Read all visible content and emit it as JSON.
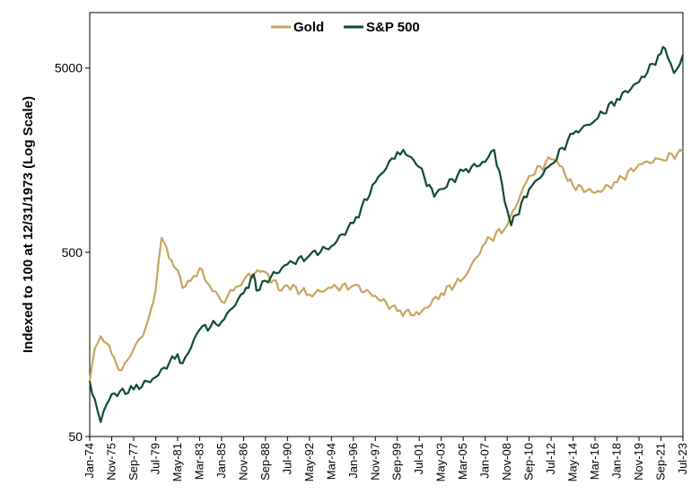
{
  "chart_data": {
    "type": "line",
    "title": "",
    "xlabel": "",
    "ylabel": "Indexed to 100 at 12/31/1973 (Log Scale)",
    "y_scale": "log",
    "ylim": [
      50,
      10000
    ],
    "y_ticks": [
      50,
      500,
      5000
    ],
    "y_tick_labels": [
      "50",
      "500",
      "5000"
    ],
    "x_tick_labels": [
      "Jan-74",
      "Nov-75",
      "Sep-77",
      "Jul-79",
      "May-81",
      "Mar-83",
      "Jan-85",
      "Nov-86",
      "Sep-88",
      "Jul-90",
      "May-92",
      "Mar-94",
      "Jan-96",
      "Nov-97",
      "Sep-99",
      "Jul-01",
      "May-03",
      "Mar-05",
      "Jan-07",
      "Nov-08",
      "Sep-10",
      "Jul-12",
      "May-14",
      "Mar-16",
      "Jan-18",
      "Nov-19",
      "Sep-21",
      "Jul-23"
    ],
    "legend": {
      "position": "top-center"
    },
    "grid": false,
    "series": [
      {
        "name": "Gold",
        "color": "#C9A461",
        "x": [
          "Jan-74",
          "Jun-74",
          "Dec-74",
          "Jun-75",
          "Nov-75",
          "Jun-76",
          "Dec-76",
          "Sep-77",
          "Jun-78",
          "Dec-78",
          "Jul-79",
          "Jan-80",
          "Jun-80",
          "Jan-81",
          "May-81",
          "Oct-81",
          "Jun-82",
          "Mar-83",
          "Jan-84",
          "Jan-85",
          "Jan-86",
          "Nov-86",
          "Jan-88",
          "Sep-88",
          "Jan-90",
          "Jul-90",
          "May-92",
          "Mar-94",
          "Jan-96",
          "Nov-97",
          "Sep-99",
          "Jul-01",
          "May-03",
          "Mar-05",
          "Jan-07",
          "Nov-08",
          "Sep-10",
          "Jul-12",
          "Jan-13",
          "May-14",
          "Mar-16",
          "Jan-18",
          "Nov-19",
          "Sep-21",
          "Jul-23"
        ],
        "values": [
          100,
          150,
          175,
          160,
          140,
          115,
          125,
          150,
          175,
          220,
          310,
          600,
          530,
          420,
          400,
          320,
          350,
          410,
          330,
          270,
          310,
          350,
          400,
          390,
          310,
          330,
          295,
          320,
          330,
          290,
          240,
          230,
          300,
          360,
          560,
          700,
          1300,
          1600,
          1550,
          1150,
          1050,
          1200,
          1500,
          1600,
          1750
        ]
      },
      {
        "name": "S&P 500",
        "color": "#0E4B35",
        "x": [
          "Jan-74",
          "Jun-74",
          "Dec-74",
          "Jun-75",
          "Nov-75",
          "Sep-77",
          "Jul-79",
          "May-81",
          "Oct-81",
          "Mar-83",
          "Jan-85",
          "Nov-86",
          "Sep-87",
          "Dec-87",
          "Sep-88",
          "Jul-90",
          "May-92",
          "Mar-94",
          "Jan-96",
          "Nov-97",
          "Sep-99",
          "Mar-00",
          "Jul-01",
          "Oct-02",
          "May-03",
          "Mar-05",
          "Jan-07",
          "Oct-07",
          "Nov-08",
          "Mar-09",
          "Sep-10",
          "Jul-12",
          "May-14",
          "Mar-16",
          "Jan-18",
          "Nov-19",
          "Sep-21",
          "Jan-22",
          "Oct-22",
          "Jul-23"
        ],
        "values": [
          100,
          80,
          60,
          75,
          85,
          90,
          105,
          140,
          125,
          190,
          210,
          300,
          380,
          310,
          350,
          430,
          480,
          540,
          720,
          1200,
          1750,
          1800,
          1450,
          1000,
          1100,
          1380,
          1550,
          1800,
          850,
          700,
          1100,
          1500,
          2200,
          2600,
          3400,
          4200,
          6000,
          6400,
          4700,
          5900
        ]
      }
    ]
  }
}
